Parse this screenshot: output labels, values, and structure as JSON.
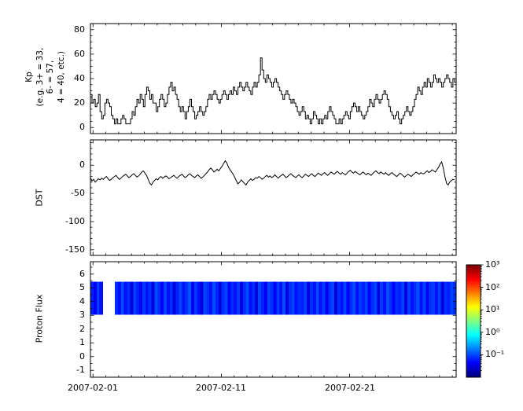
{
  "x_axis": {
    "tick_labels": [
      "2007-02-01",
      "2007-02-11",
      "2007-02-21"
    ],
    "tick_days": [
      0.2,
      10.2,
      20.2
    ],
    "minor_start_days": 0.2,
    "minor_step_days": 1,
    "range_days": [
      0,
      28.5
    ]
  },
  "chart_data": [
    {
      "type": "line",
      "name": "Kp index",
      "ylabel": "Kp\n(e.g. 3+ = 33,\n6- = 57,\n4 = 40, etc.)",
      "xlabel": "",
      "draw_style": "steps",
      "ylim": [
        -5,
        85
      ],
      "yticks": [
        80,
        60,
        40,
        20,
        0
      ],
      "ytick_labels": [
        "80",
        "60",
        "40",
        "20",
        "0"
      ],
      "ytick_minor": 5,
      "x_start_days": 0.0,
      "x_step_days": 0.125,
      "values": [
        27,
        20,
        23,
        17,
        20,
        27,
        13,
        7,
        10,
        20,
        23,
        20,
        17,
        10,
        7,
        3,
        7,
        3,
        3,
        7,
        10,
        7,
        3,
        3,
        3,
        7,
        13,
        10,
        17,
        23,
        20,
        27,
        23,
        17,
        27,
        33,
        30,
        23,
        27,
        20,
        20,
        13,
        17,
        23,
        27,
        23,
        17,
        20,
        27,
        33,
        37,
        30,
        33,
        27,
        23,
        17,
        13,
        17,
        13,
        7,
        13,
        17,
        23,
        17,
        13,
        7,
        10,
        13,
        17,
        13,
        10,
        13,
        17,
        23,
        27,
        23,
        27,
        30,
        27,
        23,
        20,
        23,
        27,
        30,
        27,
        23,
        27,
        30,
        27,
        33,
        30,
        27,
        33,
        37,
        33,
        30,
        33,
        37,
        33,
        30,
        27,
        33,
        37,
        33,
        37,
        43,
        57,
        47,
        40,
        37,
        43,
        40,
        37,
        33,
        37,
        40,
        37,
        33,
        30,
        27,
        23,
        27,
        30,
        27,
        23,
        20,
        23,
        20,
        17,
        13,
        10,
        13,
        17,
        13,
        7,
        10,
        7,
        3,
        7,
        13,
        10,
        7,
        3,
        7,
        3,
        7,
        10,
        7,
        13,
        17,
        13,
        10,
        7,
        3,
        3,
        7,
        3,
        7,
        10,
        13,
        10,
        7,
        13,
        17,
        20,
        17,
        13,
        17,
        13,
        10,
        7,
        10,
        13,
        17,
        23,
        20,
        17,
        23,
        27,
        23,
        20,
        23,
        27,
        30,
        27,
        23,
        17,
        13,
        10,
        7,
        10,
        13,
        7,
        3,
        7,
        10,
        13,
        17,
        13,
        10,
        13,
        17,
        23,
        27,
        33,
        30,
        27,
        33,
        37,
        33,
        40,
        37,
        33,
        37,
        43,
        40,
        37,
        40,
        37,
        33,
        37,
        40,
        43,
        40,
        37,
        33,
        40,
        37
      ]
    },
    {
      "type": "line",
      "name": "DST index",
      "ylabel": "DST",
      "xlabel": "",
      "draw_style": "line",
      "ylim": [
        -160,
        45
      ],
      "yticks": [
        0,
        -50,
        -100,
        -150
      ],
      "ytick_labels": [
        "0",
        "-50",
        "-100",
        "-150"
      ],
      "ytick_minor": 10,
      "x_start_days": 0.0,
      "x_step_days": 0.125,
      "values": [
        -22,
        -28,
        -25,
        -30,
        -27,
        -24,
        -26,
        -23,
        -25,
        -22,
        -20,
        -24,
        -27,
        -25,
        -22,
        -20,
        -18,
        -22,
        -25,
        -23,
        -20,
        -18,
        -16,
        -19,
        -22,
        -20,
        -17,
        -15,
        -18,
        -21,
        -19,
        -16,
        -12,
        -10,
        -14,
        -18,
        -25,
        -32,
        -35,
        -30,
        -27,
        -24,
        -26,
        -22,
        -20,
        -23,
        -21,
        -19,
        -21,
        -24,
        -22,
        -20,
        -18,
        -21,
        -23,
        -20,
        -18,
        -16,
        -19,
        -22,
        -20,
        -17,
        -15,
        -18,
        -20,
        -22,
        -19,
        -17,
        -20,
        -23,
        -21,
        -18,
        -15,
        -12,
        -8,
        -5,
        -8,
        -12,
        -10,
        -7,
        -10,
        -6,
        -2,
        3,
        8,
        4,
        -3,
        -8,
        -12,
        -16,
        -22,
        -28,
        -33,
        -30,
        -26,
        -29,
        -32,
        -35,
        -30,
        -27,
        -24,
        -27,
        -25,
        -22,
        -23,
        -20,
        -22,
        -25,
        -23,
        -20,
        -18,
        -21,
        -19,
        -22,
        -20,
        -17,
        -20,
        -23,
        -20,
        -18,
        -16,
        -19,
        -22,
        -20,
        -17,
        -15,
        -18,
        -20,
        -22,
        -19,
        -17,
        -20,
        -22,
        -19,
        -16,
        -18,
        -20,
        -17,
        -15,
        -18,
        -20,
        -17,
        -14,
        -16,
        -18,
        -15,
        -13,
        -16,
        -18,
        -15,
        -12,
        -14,
        -16,
        -13,
        -11,
        -14,
        -16,
        -13,
        -15,
        -17,
        -14,
        -11,
        -9,
        -12,
        -14,
        -11,
        -13,
        -15,
        -17,
        -14,
        -12,
        -15,
        -17,
        -14,
        -16,
        -18,
        -15,
        -12,
        -10,
        -13,
        -15,
        -12,
        -14,
        -16,
        -13,
        -16,
        -18,
        -15,
        -13,
        -16,
        -18,
        -20,
        -17,
        -14,
        -16,
        -19,
        -21,
        -18,
        -16,
        -18,
        -20,
        -17,
        -15,
        -12,
        -14,
        -16,
        -13,
        -15,
        -15,
        -12,
        -10,
        -13,
        -11,
        -8,
        -10,
        -12,
        -8,
        -4,
        2,
        6,
        -5,
        -20,
        -32,
        -35,
        -30,
        -27,
        -25,
        -26
      ]
    },
    {
      "type": "heatmap",
      "name": "Proton Flux spectrogram",
      "ylabel": "Proton Flux",
      "xlabel": "",
      "ylim": [
        -1.5,
        6.9
      ],
      "yticks": [
        6,
        5,
        4,
        3,
        2,
        1,
        0,
        -1
      ],
      "ytick_labels": [
        "6",
        "5",
        "4",
        "3",
        "2",
        "1",
        "0",
        "-1"
      ],
      "ytick_minor": 0.5,
      "band_y": [
        3.05,
        5.45
      ],
      "x_start_days": 0.0,
      "x_step_days": 0.2375,
      "columns": [
        0.06,
        0.04,
        0.08,
        0.05,
        null,
        null,
        null,
        null,
        0.07,
        0.05,
        0.1,
        0.05,
        0.07,
        0.03,
        0.09,
        0.06,
        0.04,
        0.08,
        0.05,
        0.07,
        0.03,
        0.1,
        0.07,
        0.04,
        0.09,
        0.05,
        0.07,
        0.03,
        0.06,
        0.09,
        0.05,
        0.07,
        0.11,
        0.04,
        0.08,
        0.05,
        0.03,
        0.09,
        0.07,
        0.05,
        0.1,
        0.06,
        0.03,
        0.07,
        0.09,
        0.04,
        0.07,
        0.05,
        0.08,
        0.03,
        0.07,
        0.1,
        0.05,
        0.07,
        0.03,
        0.09,
        0.06,
        0.04,
        0.09,
        0.07,
        0.04,
        0.08,
        0.05,
        0.1,
        0.03,
        0.07,
        0.09,
        0.05,
        0.07,
        0.06,
        0.09,
        0.03,
        0.07,
        0.05,
        0.1,
        0.05,
        0.08,
        0.04,
        0.07,
        0.09,
        0.03,
        0.07,
        0.05,
        0.09,
        0.04,
        0.07,
        0.1,
        0.05,
        0.08,
        0.06,
        0.09,
        0.04,
        0.07,
        0.09,
        0.03,
        0.08,
        0.05,
        0.1,
        0.07,
        0.04,
        0.07,
        0.06,
        0.09,
        0.03,
        0.08,
        0.05,
        0.07,
        0.1,
        0.05,
        0.09,
        0.04,
        0.07,
        0.08,
        0.05,
        0.09,
        0.03,
        0.07,
        0.06,
        0.09,
        0.07
      ],
      "colorbar": {
        "scale": "log",
        "colormap": "jet",
        "min": 0.01,
        "max": 1000,
        "tick_values": [
          1000,
          100,
          10,
          1,
          0.1
        ],
        "tick_labels": [
          "10³",
          "10²",
          "10¹",
          "10⁰",
          "10⁻¹"
        ]
      }
    }
  ]
}
